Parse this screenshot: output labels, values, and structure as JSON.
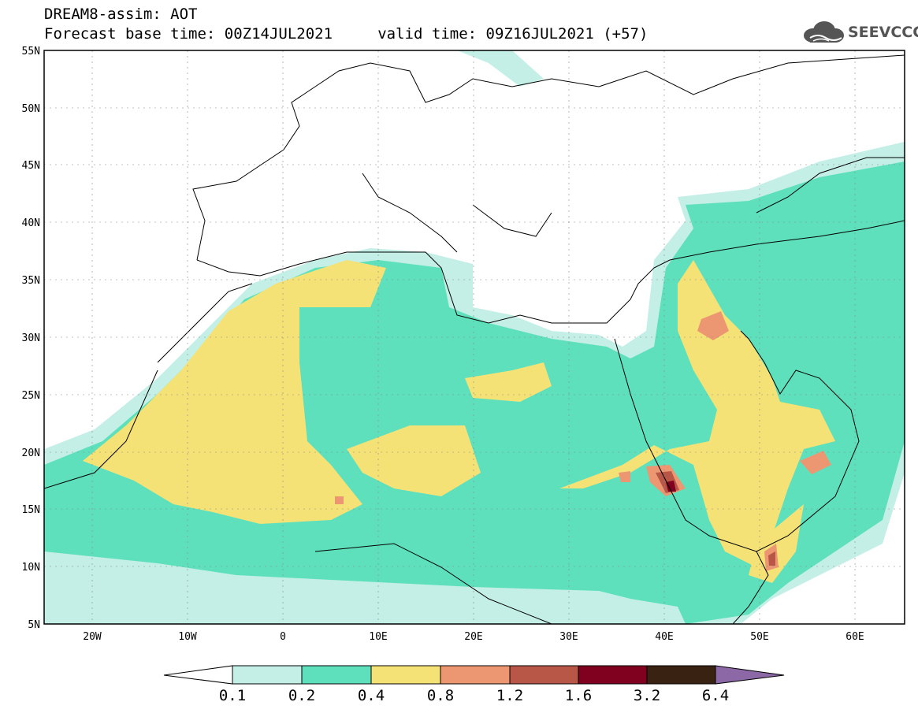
{
  "header": {
    "title_line1": "DREAM8-assim: AOT",
    "title_line2": "Forecast base time: 00Z14JUL2021     valid time: 09Z16JUL2021 (+57)"
  },
  "logo": {
    "text": "SEEVCCC",
    "icon": "cloud-icon"
  },
  "map": {
    "lat_labels": [
      "55N",
      "50N",
      "45N",
      "40N",
      "35N",
      "30N",
      "25N",
      "20N",
      "15N",
      "10N",
      "5N"
    ],
    "lon_labels": [
      "20W",
      "10W",
      "0",
      "10E",
      "20E",
      "30E",
      "40E",
      "50E",
      "60E"
    ]
  },
  "colorbar": {
    "colors": [
      "#ffffff",
      "#c4efe6",
      "#5ee0bc",
      "#f5e276",
      "#ec9772",
      "#b85747",
      "#800020",
      "#3a2212",
      "#8d68a6"
    ],
    "labels": [
      "0.1",
      "0.2",
      "0.4",
      "0.8",
      "1.2",
      "1.6",
      "3.2",
      "6.4"
    ]
  }
}
